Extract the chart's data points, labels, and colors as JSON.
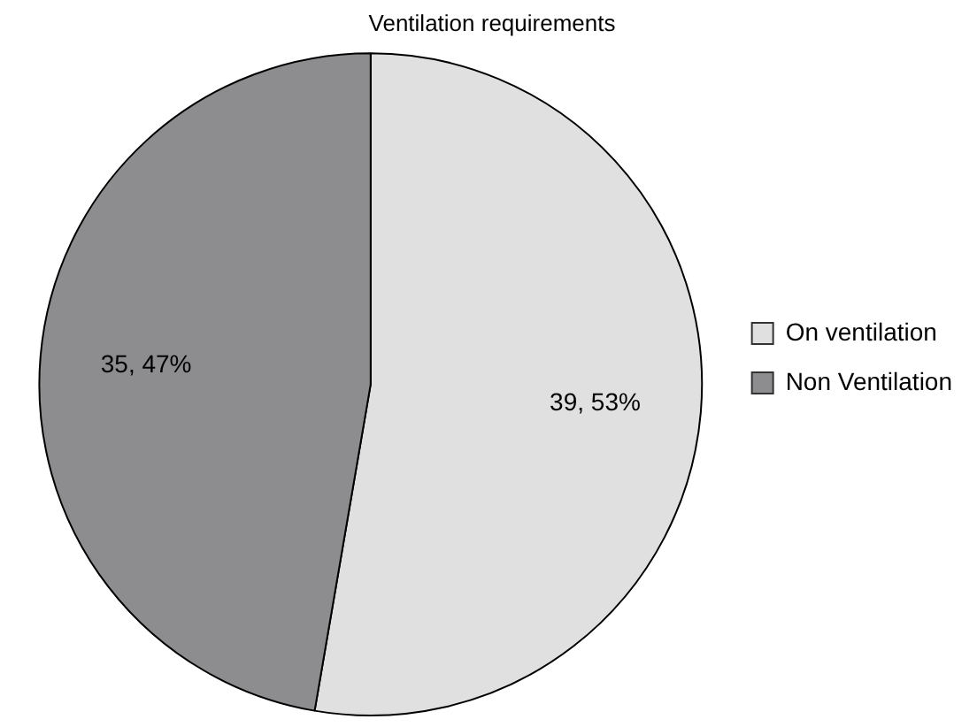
{
  "chart_data": {
    "type": "pie",
    "title": "Ventilation requirements",
    "categories": [
      "On ventilation",
      "Non Ventilation"
    ],
    "values": [
      39,
      35
    ],
    "colors": [
      "#e0e0e0",
      "#8d8d8f"
    ],
    "value_labels": [
      "39, 53%",
      "35, 47%"
    ],
    "legend": "right"
  }
}
